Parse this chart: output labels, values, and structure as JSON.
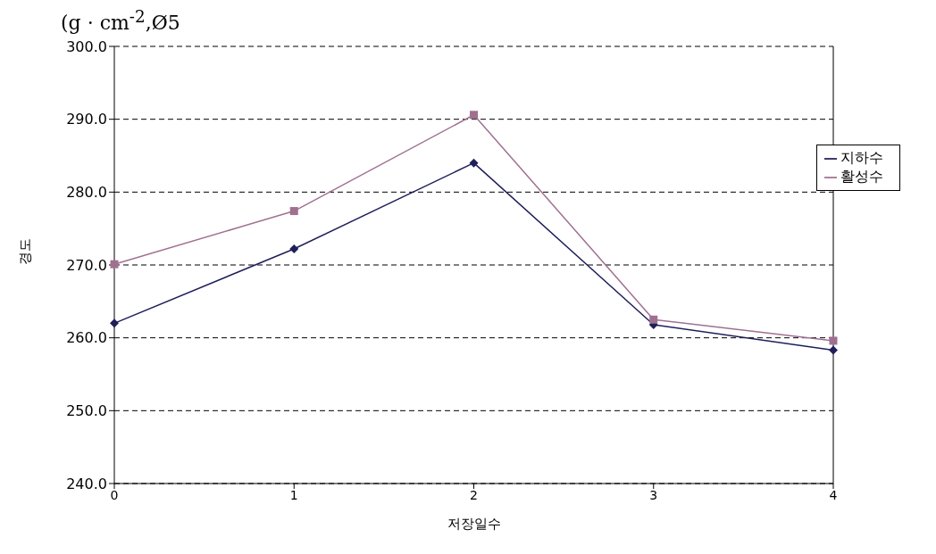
{
  "chart_data": {
    "type": "line",
    "title": "(g · cm$^{-2}$,Ø5",
    "xlabel": "저장일수",
    "ylabel": "경도",
    "categories": [
      "0",
      "1",
      "2",
      "3",
      "4"
    ],
    "series": [
      {
        "name": "지하수",
        "color": "#1f1f5a",
        "values": [
          262.0,
          272.2,
          284.0,
          261.8,
          258.3
        ],
        "marker": "diamond"
      },
      {
        "name": "활성수",
        "color": "#a07090",
        "values": [
          270.1,
          277.4,
          290.6,
          262.5,
          259.6
        ],
        "marker": "square"
      }
    ],
    "ylim": [
      240,
      300
    ],
    "yticks": [
      {
        "value": 240,
        "label": "240.0"
      },
      {
        "value": 250,
        "label": "250.0"
      },
      {
        "value": 260,
        "label": "260.0"
      },
      {
        "value": 270,
        "label": "270.0"
      },
      {
        "value": 280,
        "label": "280.0"
      },
      {
        "value": 290,
        "label": "290.0"
      },
      {
        "value": 300,
        "label": "300.0"
      }
    ],
    "grid": "y",
    "legend": "top right",
    "line_style": "solid"
  }
}
